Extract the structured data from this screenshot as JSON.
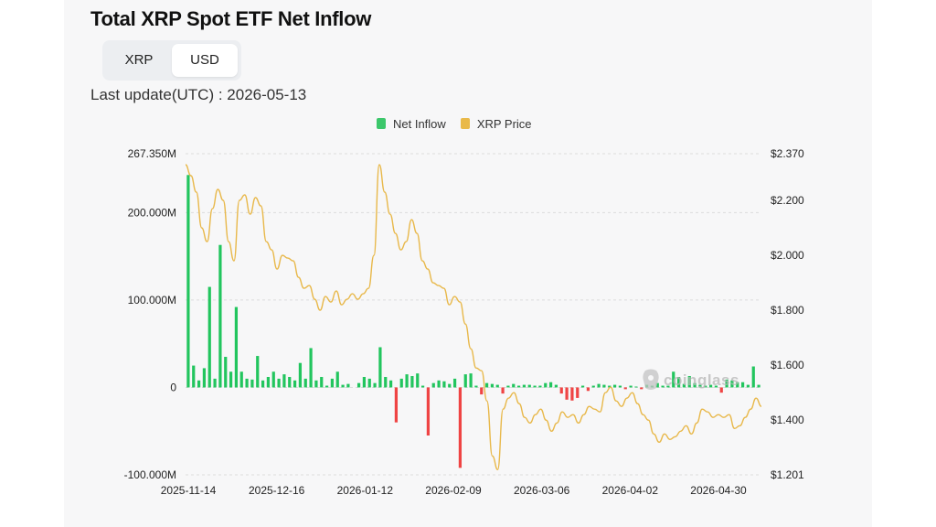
{
  "title": "Total XRP Spot ETF Net Inflow",
  "toggle": {
    "options": [
      "XRP",
      "USD"
    ],
    "selected": "USD"
  },
  "last_update": {
    "label": "Last update(UTC) :",
    "value": "2026-05-13"
  },
  "watermark": "coinglass",
  "colors": {
    "inflow": "#22c55e",
    "outflow": "#ef4444",
    "price": "#e8b84a",
    "legend_inflow": "#3cc76b",
    "legend_price": "#e9b949"
  },
  "chart_data": {
    "type": "bar",
    "legend": [
      "Net Inflow",
      "XRP Price"
    ],
    "x_tick_labels": [
      "2025-11-14",
      "2025-12-16",
      "2026-01-12",
      "2026-02-09",
      "2026-03-06",
      "2026-04-02",
      "2026-04-30"
    ],
    "left_axis": {
      "tick_labels": [
        "267.350M",
        "200.000M",
        "100.000M",
        "0",
        "-100.000M"
      ],
      "tick_values": [
        267.35,
        200,
        100,
        0,
        -100
      ],
      "ylim": [
        -100,
        267.35
      ],
      "unit": "M USD"
    },
    "right_axis": {
      "tick_labels": [
        "$2.370",
        "$2.200",
        "$2.000",
        "$1.800",
        "$1.600",
        "$1.400",
        "$1.201"
      ],
      "tick_values": [
        2.37,
        2.2,
        2.0,
        1.8,
        1.6,
        1.4,
        1.201
      ],
      "ylim": [
        1.201,
        2.37
      ]
    },
    "series": [
      {
        "name": "Net Inflow",
        "type": "bar",
        "values": [
          243,
          25,
          8,
          22,
          115,
          10,
          163,
          35,
          18,
          92,
          18,
          10,
          9,
          36,
          8,
          12,
          18,
          10,
          15,
          12,
          8,
          28,
          10,
          45,
          8,
          12,
          2,
          10,
          18,
          3,
          4,
          0,
          5,
          12,
          10,
          5,
          46,
          12,
          8,
          -40,
          10,
          15,
          13,
          16,
          2,
          -55,
          5,
          8,
          7,
          4,
          10,
          -92,
          15,
          16,
          2,
          -8,
          5,
          4,
          3,
          -7,
          2,
          4,
          2,
          3,
          3,
          2,
          2,
          5,
          6,
          3,
          -7,
          -14,
          -15,
          -12,
          2,
          -4,
          2,
          4,
          3,
          2,
          3,
          2,
          -2,
          2,
          1,
          -2,
          3,
          2,
          5,
          2,
          2,
          18,
          12,
          4,
          13,
          5,
          3,
          2,
          3,
          2,
          -6,
          9,
          8,
          6,
          6,
          3,
          24,
          3
        ],
        "color": "#22c55e"
      },
      {
        "name": "XRP Price",
        "type": "line",
        "values": [
          2.33,
          2.29,
          2.23,
          2.1,
          2.05,
          2.17,
          2.24,
          2.2,
          2.05,
          1.98,
          2.2,
          2.22,
          2.15,
          2.21,
          2.18,
          2.05,
          2.02,
          1.95,
          2.0,
          1.99,
          1.98,
          1.92,
          1.88,
          1.89,
          1.84,
          1.8,
          1.85,
          1.83,
          1.87,
          1.82,
          1.84,
          1.86,
          1.84,
          1.86,
          1.88,
          2.0,
          2.33,
          2.23,
          2.15,
          2.08,
          2.02,
          2.05,
          2.13,
          2.08,
          1.98,
          1.95,
          1.9,
          1.89,
          1.88,
          1.82,
          1.85,
          1.83,
          1.75,
          1.66,
          1.59,
          1.58,
          1.47,
          1.27,
          1.22,
          1.44,
          1.48,
          1.5,
          1.46,
          1.41,
          1.39,
          1.42,
          1.44,
          1.4,
          1.36,
          1.39,
          1.43,
          1.41,
          1.42,
          1.39,
          1.42,
          1.45,
          1.44,
          1.43,
          1.5,
          1.52,
          1.47,
          1.45,
          1.48,
          1.5,
          1.46,
          1.42,
          1.4,
          1.35,
          1.32,
          1.35,
          1.33,
          1.34,
          1.36,
          1.38,
          1.35,
          1.39,
          1.44,
          1.43,
          1.41,
          1.42,
          1.41,
          1.42,
          1.37,
          1.38,
          1.41,
          1.44,
          1.48,
          1.45
        ],
        "color": "#e8b84a"
      }
    ],
    "grid": "horizontal dashed",
    "legend_position": "top-center"
  }
}
